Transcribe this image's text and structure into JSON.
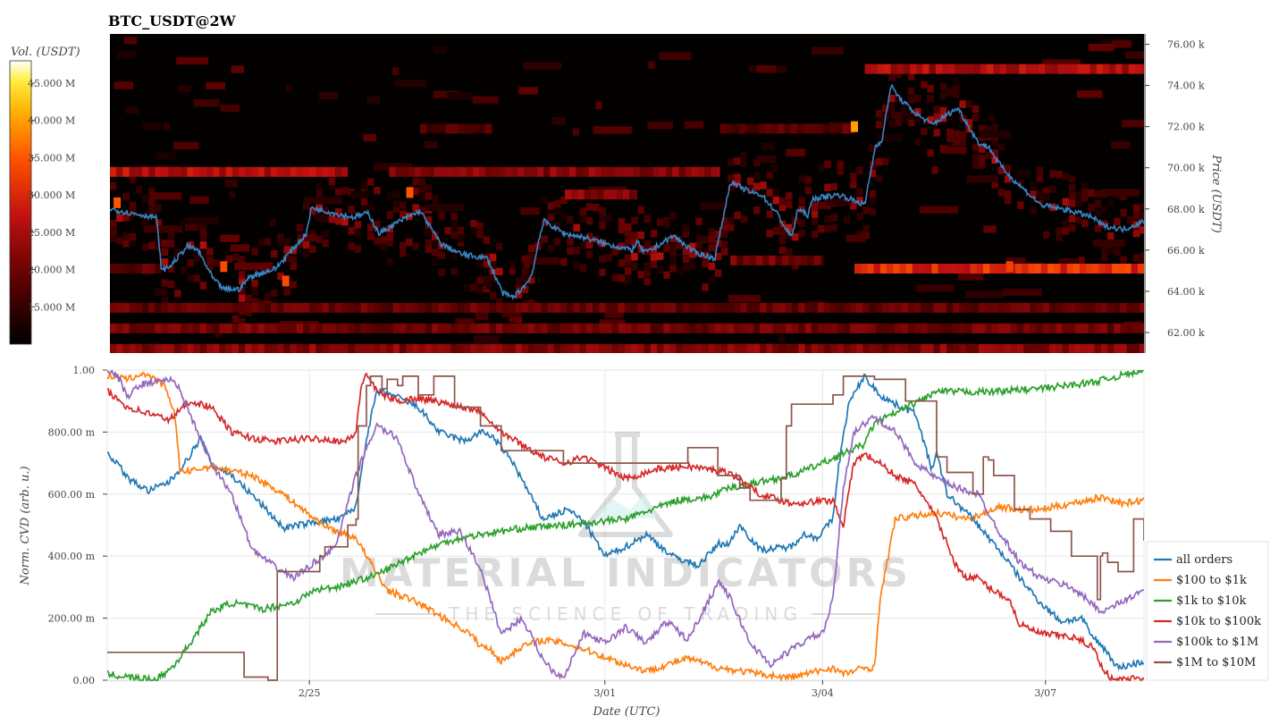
{
  "chart_data": [
    {
      "type": "heatmap",
      "title": "BTC_USDT@2W",
      "ylabel": "Price (USDT)",
      "ylim": [
        61000,
        76500
      ],
      "y_ticks": [
        62000,
        64000,
        66000,
        68000,
        70000,
        72000,
        74000,
        76000
      ],
      "y_tick_labels": [
        "62.00 k",
        "64.00 k",
        "66.00 k",
        "68.00 k",
        "70.00 k",
        "72.00 k",
        "74.00 k",
        "76.00 k"
      ],
      "x_range": [
        "2/22",
        "3/08"
      ],
      "colorbar": {
        "label": "Vol. (USDT)",
        "range": [
          10000000,
          48000000
        ],
        "ticks": [
          15000000,
          20000000,
          25000000,
          30000000,
          35000000,
          40000000,
          45000000
        ],
        "tick_labels": [
          "15.000 M",
          "20.000 M",
          "25.000 M",
          "30.000 M",
          "35.000 M",
          "40.000 M",
          "45.000 M"
        ],
        "colors": [
          "#000000",
          "#8b0000",
          "#e02000",
          "#ff8000",
          "#ffd000",
          "#ffffff"
        ]
      },
      "bands": [
        {
          "price": 61200,
          "from": 0.0,
          "to": 1.0,
          "volume": 22000000
        },
        {
          "price": 62200,
          "from": 0.0,
          "to": 1.0,
          "volume": 20000000
        },
        {
          "price": 63200,
          "from": 0.0,
          "to": 1.0,
          "volume": 19000000
        },
        {
          "price": 65100,
          "from": 0.0,
          "to": 0.05,
          "volume": 18000000
        },
        {
          "price": 65100,
          "from": 0.72,
          "to": 1.0,
          "volume": 30000000
        },
        {
          "price": 65500,
          "from": 0.6,
          "to": 0.69,
          "volume": 20000000
        },
        {
          "price": 69800,
          "from": 0.0,
          "to": 0.23,
          "volume": 26000000
        },
        {
          "price": 69800,
          "from": 0.27,
          "to": 0.59,
          "volume": 22000000
        },
        {
          "price": 68700,
          "from": 0.44,
          "to": 0.51,
          "volume": 22000000
        },
        {
          "price": 71900,
          "from": 0.3,
          "to": 0.37,
          "volume": 17000000
        },
        {
          "price": 71900,
          "from": 0.59,
          "to": 0.72,
          "volume": 18000000
        },
        {
          "price": 74800,
          "from": 0.73,
          "to": 1.0,
          "volume": 25000000
        }
      ],
      "hotspots": [
        {
          "x": 0.007,
          "price": 68300,
          "volume": 35000000
        },
        {
          "x": 0.11,
          "price": 65200,
          "volume": 34000000
        },
        {
          "x": 0.17,
          "price": 64500,
          "volume": 34000000
        },
        {
          "x": 0.29,
          "price": 68800,
          "volume": 35000000
        },
        {
          "x": 0.72,
          "price": 72000,
          "volume": 40000000
        },
        {
          "x": 0.87,
          "price": 65200,
          "volume": 33000000
        }
      ],
      "series": [
        {
          "name": "price",
          "color": "#3a84c4",
          "x": [
            0.0,
            0.02,
            0.045,
            0.05,
            0.058,
            0.075,
            0.085,
            0.1,
            0.11,
            0.125,
            0.135,
            0.16,
            0.19,
            0.195,
            0.2,
            0.2,
            0.225,
            0.235,
            0.25,
            0.26,
            0.28,
            0.3,
            0.32,
            0.34,
            0.365,
            0.38,
            0.39,
            0.405,
            0.41,
            0.415,
            0.42,
            0.44,
            0.46,
            0.48,
            0.505,
            0.51,
            0.515,
            0.52,
            0.545,
            0.565,
            0.585,
            0.6,
            0.62,
            0.63,
            0.645,
            0.655,
            0.66,
            0.665,
            0.675,
            0.68,
            0.705,
            0.73,
            0.74,
            0.747,
            0.755,
            0.765,
            0.78,
            0.795,
            0.82,
            0.84,
            0.85,
            0.86,
            0.87,
            0.9,
            0.93,
            0.95,
            0.96,
            0.98,
            1.0
          ],
          "y": [
            68000,
            67800,
            67600,
            65000,
            65200,
            66200,
            66000,
            64600,
            64100,
            64100,
            64700,
            65100,
            66800,
            68100,
            68000,
            68000,
            67700,
            67600,
            67800,
            66800,
            67400,
            67900,
            66300,
            65800,
            65600,
            63900,
            63700,
            64500,
            65200,
            66600,
            67400,
            66800,
            66600,
            66300,
            66000,
            66400,
            66000,
            65900,
            66700,
            65900,
            65600,
            69300,
            68800,
            68700,
            67800,
            66900,
            66700,
            68000,
            67700,
            68500,
            68700,
            68200,
            71000,
            71400,
            74000,
            73300,
            72600,
            72100,
            72900,
            71200,
            71000,
            70200,
            69600,
            68200,
            67900,
            67600,
            67200,
            67000,
            67400
          ]
        }
      ]
    },
    {
      "type": "line",
      "xlabel": "Date (UTC)",
      "ylabel": "Norm. CVD (arb. u.)",
      "ylim": [
        0,
        1
      ],
      "y_ticks": [
        0,
        0.2,
        0.4,
        0.6,
        0.8,
        1.0
      ],
      "y_tick_labels": [
        "0.00",
        "200.00 m",
        "400.00 m",
        "600.00 m",
        "800.00 m",
        "1.00"
      ],
      "x_ticks": [
        0.195,
        0.48,
        0.69,
        0.905
      ],
      "x_tick_labels": [
        "2/25",
        "3/01",
        "3/04",
        "3/07"
      ],
      "grid": true,
      "legend_position": "bottom-right",
      "series": [
        {
          "name": "all orders",
          "color": "#1f77b4",
          "x": [
            0.0,
            0.01,
            0.02,
            0.04,
            0.06,
            0.075,
            0.09,
            0.1,
            0.12,
            0.145,
            0.17,
            0.2,
            0.225,
            0.24,
            0.25,
            0.26,
            0.275,
            0.3,
            0.32,
            0.345,
            0.36,
            0.37,
            0.39,
            0.42,
            0.445,
            0.46,
            0.48,
            0.5,
            0.52,
            0.545,
            0.57,
            0.59,
            0.6,
            0.61,
            0.63,
            0.66,
            0.67,
            0.685,
            0.7,
            0.705,
            0.715,
            0.73,
            0.745,
            0.76,
            0.78,
            0.795,
            0.8,
            0.81,
            0.835,
            0.865,
            0.88,
            0.9,
            0.92,
            0.94,
            0.95,
            0.96,
            0.975,
            1.0
          ],
          "y": [
            0.73,
            0.7,
            0.65,
            0.61,
            0.64,
            0.7,
            0.78,
            0.7,
            0.66,
            0.58,
            0.49,
            0.51,
            0.52,
            0.56,
            0.78,
            0.93,
            0.92,
            0.88,
            0.8,
            0.77,
            0.8,
            0.79,
            0.71,
            0.52,
            0.55,
            0.51,
            0.4,
            0.43,
            0.47,
            0.4,
            0.37,
            0.44,
            0.44,
            0.5,
            0.42,
            0.43,
            0.47,
            0.46,
            0.52,
            0.68,
            0.89,
            0.98,
            0.92,
            0.89,
            0.86,
            0.68,
            0.73,
            0.6,
            0.52,
            0.4,
            0.33,
            0.25,
            0.19,
            0.2,
            0.14,
            0.11,
            0.04,
            0.06
          ]
        },
        {
          "name": "$100 to $1k",
          "color": "#ff7f0e",
          "x": [
            0.0,
            0.02,
            0.035,
            0.055,
            0.06,
            0.065,
            0.07,
            0.075,
            0.1,
            0.14,
            0.16,
            0.17,
            0.2,
            0.22,
            0.24,
            0.25,
            0.27,
            0.3,
            0.33,
            0.35,
            0.36,
            0.37,
            0.38,
            0.4,
            0.42,
            0.44,
            0.46,
            0.5,
            0.52,
            0.54,
            0.56,
            0.59,
            0.63,
            0.65,
            0.66,
            0.7,
            0.71,
            0.72,
            0.73,
            0.74,
            0.745,
            0.76,
            0.8,
            0.83,
            0.84,
            0.86,
            0.88,
            0.9,
            0.93,
            0.96,
            0.98,
            1.0
          ],
          "y": [
            0.98,
            0.97,
            0.99,
            0.95,
            0.9,
            0.87,
            0.68,
            0.67,
            0.69,
            0.66,
            0.62,
            0.6,
            0.52,
            0.48,
            0.46,
            0.4,
            0.29,
            0.25,
            0.19,
            0.15,
            0.11,
            0.1,
            0.06,
            0.11,
            0.13,
            0.12,
            0.1,
            0.05,
            0.03,
            0.05,
            0.07,
            0.04,
            0.02,
            0.01,
            0.01,
            0.04,
            0.02,
            0.03,
            0.04,
            0.04,
            0.25,
            0.52,
            0.54,
            0.52,
            0.53,
            0.56,
            0.55,
            0.55,
            0.57,
            0.59,
            0.57,
            0.58
          ]
        },
        {
          "name": "$1k to $10k",
          "color": "#2ca02c",
          "x": [
            0.0,
            0.02,
            0.045,
            0.055,
            0.065,
            0.08,
            0.1,
            0.12,
            0.15,
            0.18,
            0.2,
            0.22,
            0.24,
            0.26,
            0.3,
            0.33,
            0.36,
            0.4,
            0.44,
            0.5,
            0.55,
            0.58,
            0.6,
            0.63,
            0.66,
            0.69,
            0.71,
            0.73,
            0.74,
            0.76,
            0.8,
            0.85,
            0.9,
            0.95,
            1.0
          ],
          "y": [
            0.02,
            0.01,
            0.0,
            0.02,
            0.05,
            0.12,
            0.22,
            0.25,
            0.23,
            0.25,
            0.29,
            0.3,
            0.32,
            0.34,
            0.41,
            0.45,
            0.47,
            0.49,
            0.5,
            0.52,
            0.58,
            0.59,
            0.62,
            0.64,
            0.66,
            0.7,
            0.73,
            0.76,
            0.83,
            0.86,
            0.93,
            0.93,
            0.94,
            0.96,
            1.0
          ]
        },
        {
          "name": "$10k to $100k",
          "color": "#d62728",
          "x": [
            0.0,
            0.02,
            0.04,
            0.06,
            0.08,
            0.1,
            0.12,
            0.14,
            0.16,
            0.2,
            0.23,
            0.24,
            0.245,
            0.25,
            0.26,
            0.28,
            0.3,
            0.33,
            0.36,
            0.38,
            0.42,
            0.44,
            0.46,
            0.5,
            0.53,
            0.56,
            0.6,
            0.63,
            0.66,
            0.7,
            0.71,
            0.72,
            0.73,
            0.745,
            0.76,
            0.78,
            0.8,
            0.82,
            0.83,
            0.84,
            0.85,
            0.87,
            0.88,
            0.9,
            0.93,
            0.95,
            0.96,
            0.97,
            1.0
          ],
          "y": [
            0.93,
            0.88,
            0.86,
            0.84,
            0.9,
            0.88,
            0.8,
            0.78,
            0.77,
            0.78,
            0.77,
            0.8,
            0.95,
            0.99,
            0.93,
            0.9,
            0.91,
            0.89,
            0.87,
            0.8,
            0.72,
            0.7,
            0.72,
            0.65,
            0.68,
            0.69,
            0.67,
            0.6,
            0.57,
            0.58,
            0.5,
            0.7,
            0.73,
            0.7,
            0.66,
            0.63,
            0.52,
            0.36,
            0.33,
            0.33,
            0.3,
            0.26,
            0.18,
            0.15,
            0.14,
            0.11,
            0.04,
            0.0,
            0.01
          ]
        },
        {
          "name": "$100k to $1M",
          "color": "#9467bd",
          "x": [
            0.0,
            0.01,
            0.02,
            0.03,
            0.04,
            0.06,
            0.07,
            0.08,
            0.09,
            0.1,
            0.12,
            0.14,
            0.16,
            0.18,
            0.2,
            0.22,
            0.24,
            0.25,
            0.26,
            0.28,
            0.3,
            0.32,
            0.34,
            0.36,
            0.38,
            0.4,
            0.42,
            0.43,
            0.44,
            0.46,
            0.48,
            0.5,
            0.52,
            0.54,
            0.56,
            0.59,
            0.6,
            0.62,
            0.64,
            0.66,
            0.68,
            0.69,
            0.7,
            0.71,
            0.72,
            0.74,
            0.76,
            0.78,
            0.8,
            0.82,
            0.84,
            0.86,
            0.88,
            0.9,
            0.93,
            0.96,
            1.0
          ],
          "y": [
            1.0,
            0.98,
            0.91,
            0.95,
            0.96,
            0.97,
            0.94,
            0.85,
            0.78,
            0.7,
            0.6,
            0.42,
            0.37,
            0.33,
            0.38,
            0.43,
            0.66,
            0.75,
            0.82,
            0.78,
            0.6,
            0.47,
            0.48,
            0.36,
            0.15,
            0.2,
            0.07,
            0.03,
            0.01,
            0.15,
            0.12,
            0.17,
            0.12,
            0.19,
            0.13,
            0.32,
            0.27,
            0.12,
            0.05,
            0.1,
            0.14,
            0.15,
            0.26,
            0.62,
            0.8,
            0.85,
            0.8,
            0.7,
            0.65,
            0.62,
            0.6,
            0.48,
            0.38,
            0.33,
            0.3,
            0.22,
            0.29
          ]
        },
        {
          "name": "$1M to $10M",
          "color": "#8c564b",
          "x": [
            0.0,
            0.13,
            0.132,
            0.155,
            0.162,
            0.164,
            0.2,
            0.205,
            0.21,
            0.23,
            0.232,
            0.24,
            0.242,
            0.25,
            0.254,
            0.265,
            0.27,
            0.28,
            0.285,
            0.3,
            0.31,
            0.315,
            0.335,
            0.345,
            0.36,
            0.37,
            0.38,
            0.405,
            0.42,
            0.435,
            0.44,
            0.52,
            0.56,
            0.58,
            0.589,
            0.61,
            0.62,
            0.65,
            0.655,
            0.66,
            0.7,
            0.71,
            0.715,
            0.73,
            0.74,
            0.76,
            0.77,
            0.8,
            0.81,
            0.83,
            0.835,
            0.845,
            0.85,
            0.855,
            0.875,
            0.89,
            0.91,
            0.93,
            0.95,
            0.955,
            0.958,
            0.96,
            0.965,
            0.975,
            0.99,
            1.0
          ],
          "y": [
            0.09,
            0.09,
            0.01,
            0.0,
            0.0,
            0.35,
            0.35,
            0.4,
            0.43,
            0.43,
            0.5,
            0.52,
            0.82,
            0.95,
            0.98,
            0.94,
            0.97,
            0.95,
            0.98,
            0.92,
            0.92,
            0.98,
            0.88,
            0.88,
            0.82,
            0.82,
            0.74,
            0.74,
            0.74,
            0.74,
            0.7,
            0.7,
            0.75,
            0.75,
            0.66,
            0.62,
            0.58,
            0.65,
            0.82,
            0.89,
            0.92,
            0.98,
            0.98,
            0.98,
            0.97,
            0.97,
            0.9,
            0.72,
            0.67,
            0.67,
            0.6,
            0.72,
            0.71,
            0.66,
            0.55,
            0.52,
            0.48,
            0.4,
            0.4,
            0.26,
            0.4,
            0.41,
            0.38,
            0.35,
            0.52,
            0.45
          ]
        }
      ]
    }
  ],
  "watermark": {
    "title": "MATERIAL INDICATORS",
    "subtitle": "THE SCIENCE OF TRADING"
  }
}
